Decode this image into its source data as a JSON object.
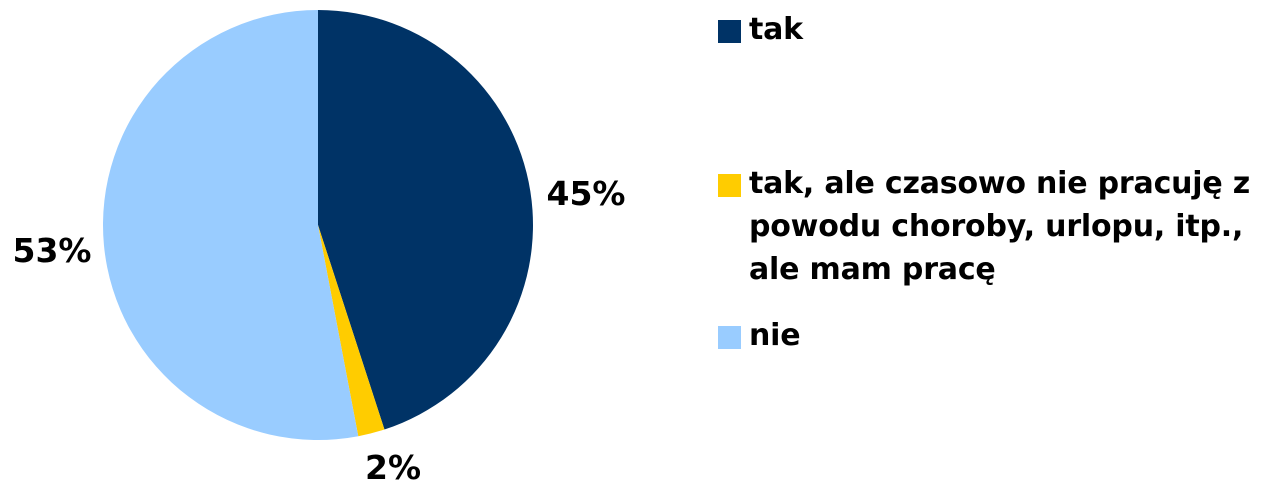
{
  "chart_data": {
    "type": "pie",
    "title": "",
    "categories": [
      "tak",
      "tak, ale czasowo nie pracuję z\npowodu choroby, urlopu, itp.,\nale mam pracę",
      "nie"
    ],
    "values": [
      45,
      2,
      53
    ],
    "labels": [
      "45%",
      "2%",
      "53%"
    ],
    "colors": [
      "#003366",
      "#FFCC00",
      "#99CCFF"
    ],
    "start_angle_deg": 0,
    "direction": "clockwise",
    "legend": "right"
  },
  "legend": {
    "items": [
      {
        "label": "tak",
        "color": "#003366"
      },
      {
        "label": "tak, ale czasowo nie pracuję z\npowodu choroby, urlopu, itp.,\nale mam pracę",
        "color": "#FFCC00"
      },
      {
        "label": "nie",
        "color": "#99CCFF"
      }
    ]
  }
}
